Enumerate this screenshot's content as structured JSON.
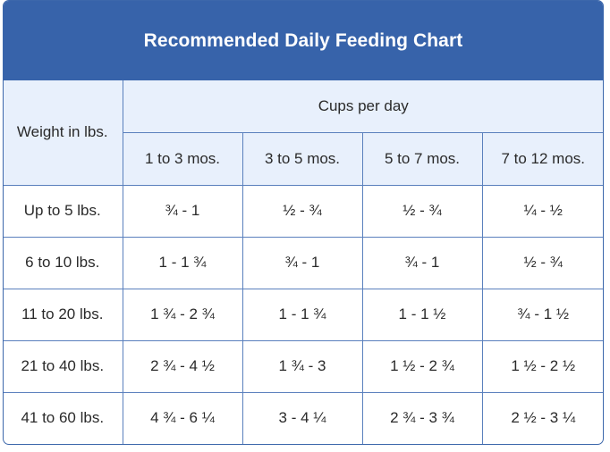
{
  "title": "Recommended Daily Feeding Chart",
  "table": {
    "weight_header": "Weight in lbs.",
    "group_header": "Cups per day",
    "age_columns": [
      "1 to 3 mos.",
      "3 to 5 mos.",
      "5 to 7 mos.",
      "7 to 12 mos."
    ],
    "rows": [
      {
        "weight": "Up to 5 lbs.",
        "cups": [
          "¾ - 1",
          "½ - ¾",
          "½ - ¾",
          "¼ - ½"
        ]
      },
      {
        "weight": "6 to 10 lbs.",
        "cups": [
          "1 - 1 ¾",
          "¾ - 1",
          "¾ - 1",
          "½ - ¾"
        ]
      },
      {
        "weight": "11 to 20 lbs.",
        "cups": [
          "1 ¾ - 2 ¾",
          "1 - 1 ¾",
          "1 - 1 ½",
          "¾ - 1 ½"
        ]
      },
      {
        "weight": "21 to 40 lbs.",
        "cups": [
          "2 ¾ - 4 ½",
          "1 ¾ - 3",
          "1 ½ - 2 ¾",
          "1 ½ - 2 ½"
        ]
      },
      {
        "weight": "41 to 60 lbs.",
        "cups": [
          "4 ¾ - 6 ¼",
          "3 - 4 ¼",
          "2 ¾ - 3 ¾",
          "2 ½ - 3 ¼"
        ]
      }
    ]
  },
  "colors": {
    "title_bar": "#3763aa",
    "header_bg": "#e8f0fc",
    "border": "#5a80bd"
  }
}
